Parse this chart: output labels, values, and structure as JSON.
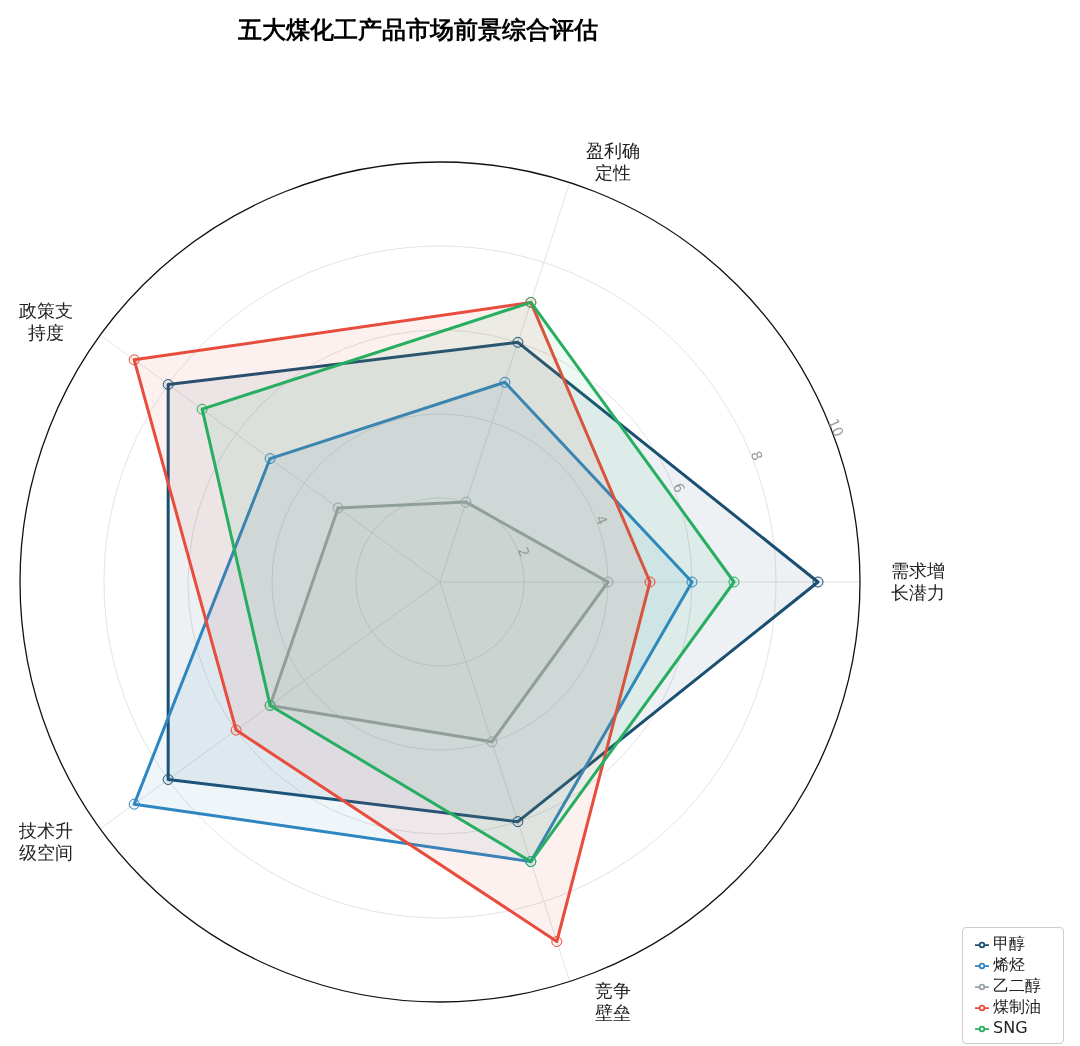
{
  "chart_data": {
    "type": "radar",
    "title": "五大煤化工产品市场前景综合评估",
    "categories": [
      "盈利确定性",
      "需求增长潜力",
      "竞争壁垒",
      "技术升级空间",
      "政策支持度"
    ],
    "series": [
      {
        "name": "甲醇",
        "color": "#1b4f72",
        "values": [
          6,
          9,
          6,
          8,
          8
        ]
      },
      {
        "name": "烯烃",
        "color": "#2e86c1",
        "values": [
          5,
          6,
          7,
          9,
          5
        ]
      },
      {
        "name": "乙二醇",
        "color": "#95a5a6",
        "values": [
          2,
          4,
          4,
          5,
          3
        ]
      },
      {
        "name": "煤制油",
        "color": "#e74c3c",
        "values": [
          7,
          5,
          9,
          6,
          9
        ]
      },
      {
        "name": "SNG",
        "color": "#27ae60",
        "values": [
          7,
          7,
          7,
          5,
          7
        ]
      }
    ],
    "ylim": [
      0,
      10
    ],
    "yticks": [
      2,
      4,
      6,
      8,
      10
    ],
    "grid": true,
    "legend": "bottom right",
    "marker": "circle",
    "line_style": "solid"
  }
}
